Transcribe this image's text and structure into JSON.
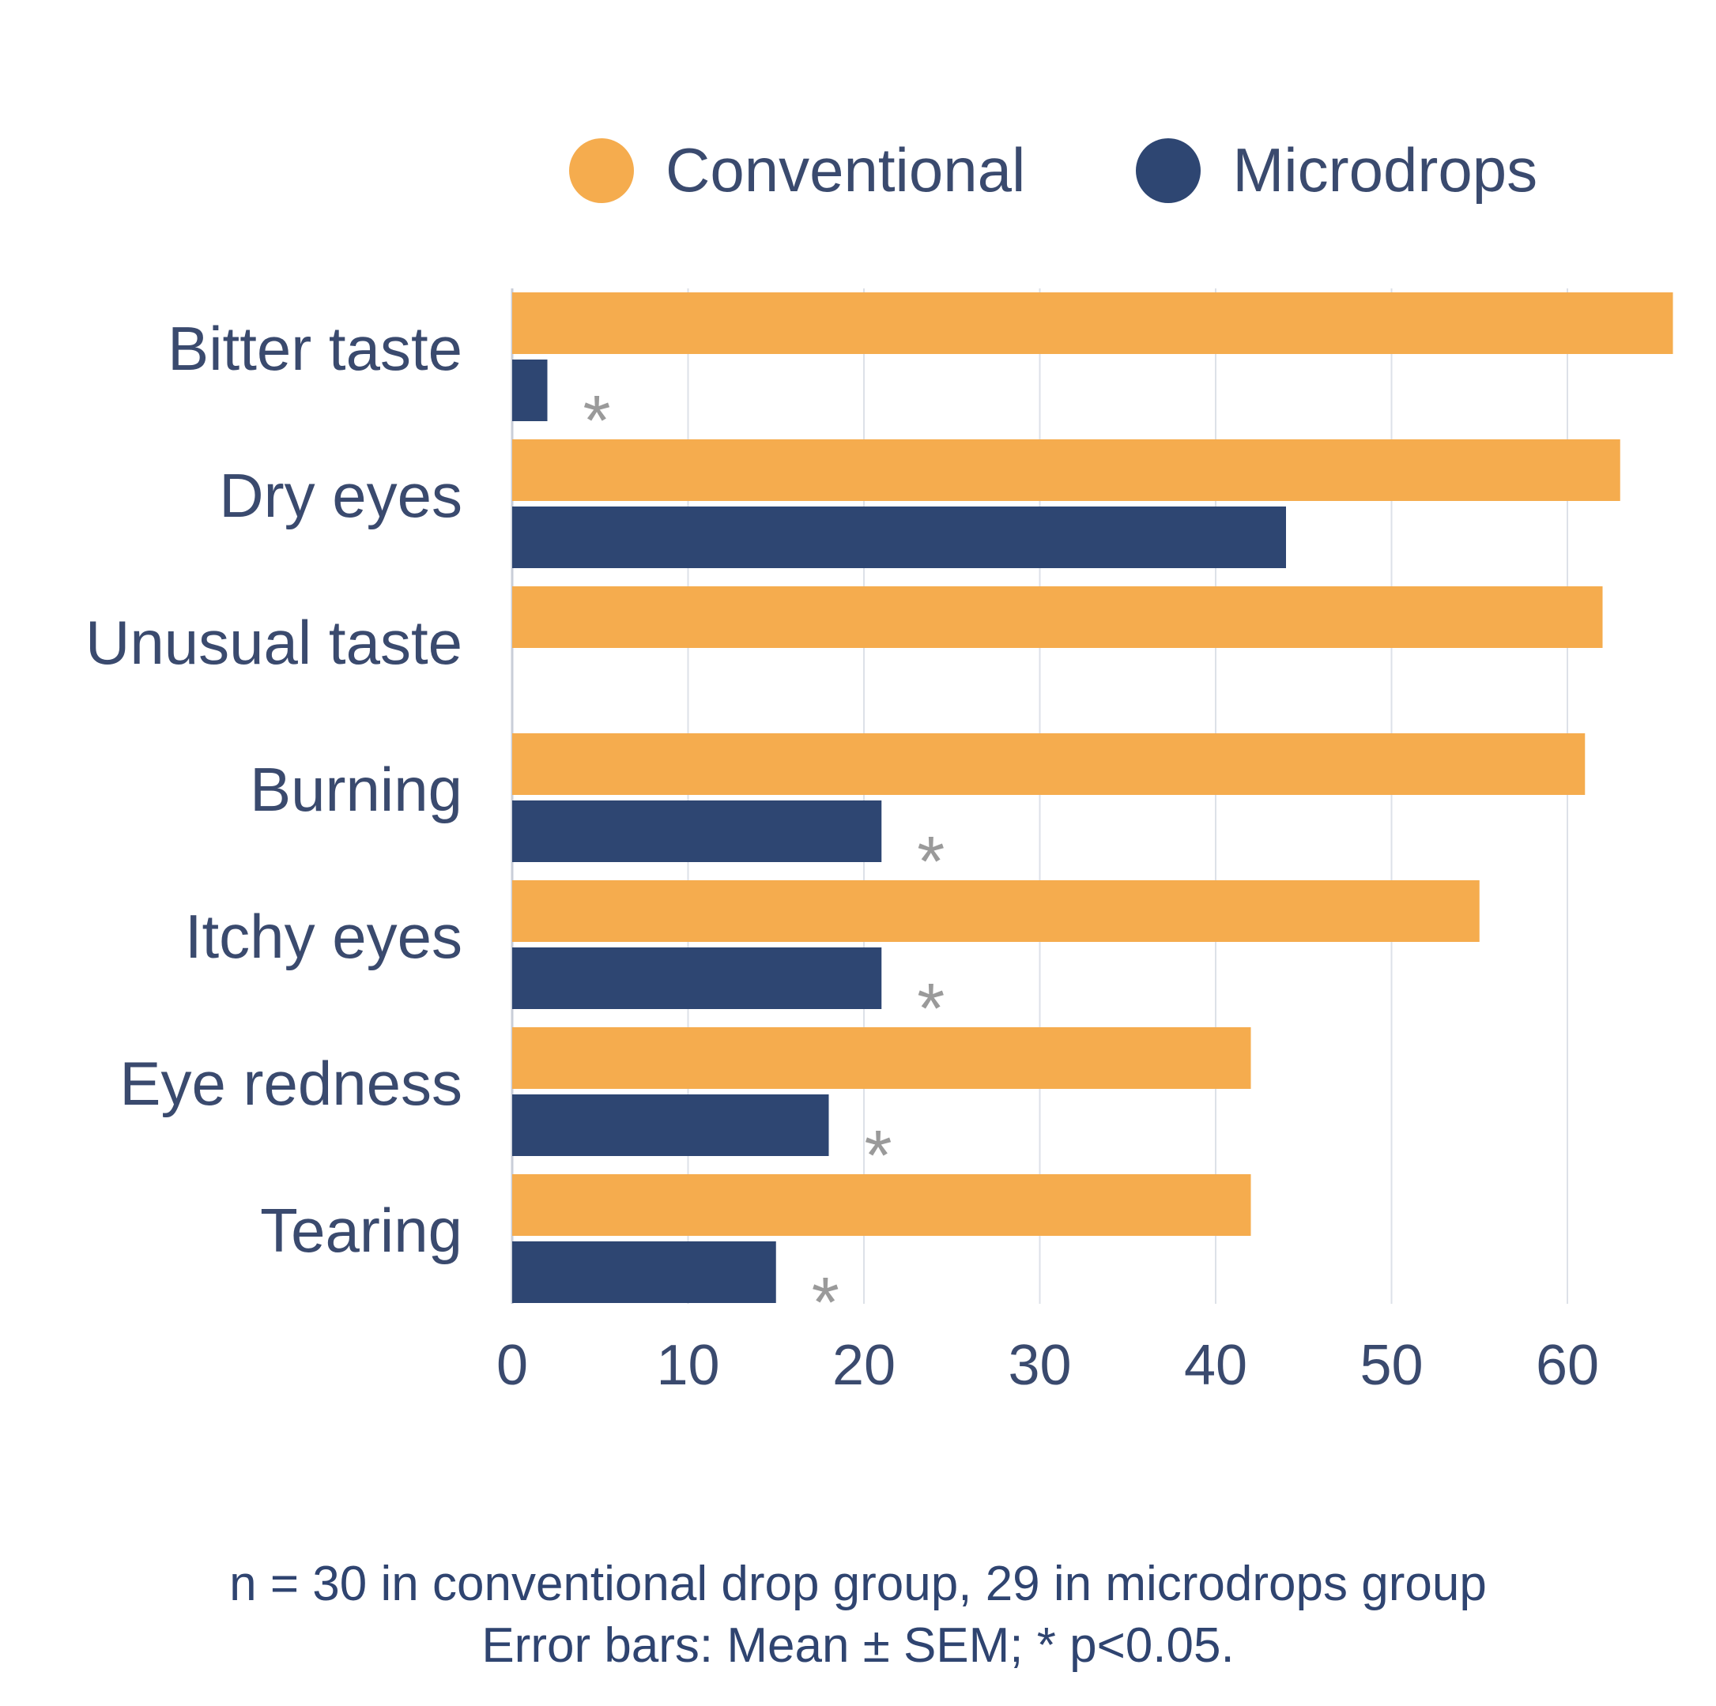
{
  "chart_data": {
    "type": "bar",
    "orientation": "horizontal",
    "categories": [
      "Bitter taste",
      "Dry eyes",
      "Unusual taste",
      "Burning",
      "Itchy eyes",
      "Eye redness",
      "Tearing"
    ],
    "series": [
      {
        "name": "Conventional",
        "color": "#F5AC4E",
        "values": [
          66,
          63,
          62,
          61,
          55,
          42,
          42
        ]
      },
      {
        "name": "Microdrops",
        "color": "#2E4672",
        "values": [
          2,
          44,
          0,
          21,
          21,
          18,
          15
        ]
      }
    ],
    "significance": [
      "*",
      "",
      "",
      "*",
      "*",
      "*",
      "*"
    ],
    "xticks": [
      "0",
      "10",
      "20",
      "30",
      "40",
      "50",
      "60"
    ],
    "xlim": [
      0,
      66
    ],
    "grid": true,
    "legend_position": "top",
    "significance_color": "#9a9a9a",
    "label_color": "#3a4a6e"
  },
  "footnote": {
    "line1": "n = 30 in conventional drop group, 29 in microdrops group",
    "line2": "Error bars: Mean ± SEM; * p<0.05."
  }
}
